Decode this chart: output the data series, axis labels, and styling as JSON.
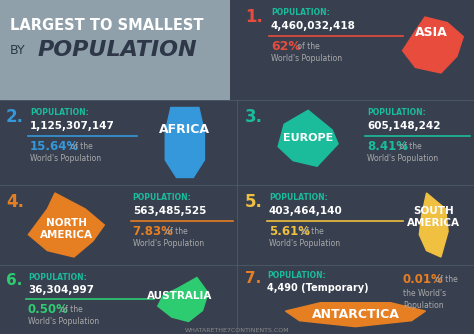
{
  "bg_color": "#384050",
  "title_bg": "#8fa0aa",
  "title_line1": "LARGEST TO SMALLEST",
  "title_by": "BY",
  "title_pop": "POPULATION",
  "footer": "WHATARETHE7CONTINENTS.COM",
  "pop_label_color": "#1abc9c",
  "white": "#ffffff",
  "gray_text": "#aaaaaa",
  "rank_color_1": "#e74c3c",
  "rank_color_2": "#3498db",
  "rank_color_3": "#1abc9c",
  "rank_color_4": "#e67e22",
  "rank_color_5": "#f0c040",
  "rank_color_6": "#2ecc71",
  "rank_color_7": "#e67e22",
  "continents": [
    {
      "rank": "1.",
      "name": "ASIA",
      "pop": "4,460,032,418",
      "pct": "62%",
      "color": "#e74c3c",
      "layout": "right",
      "row": 0,
      "text_side": "left",
      "shape_side": "right"
    },
    {
      "rank": "2.",
      "name": "AFRICA",
      "pop": "1,125,307,147",
      "pct": "15.64%",
      "color": "#3498db",
      "layout": "left",
      "row": 1,
      "text_side": "right",
      "shape_side": "right"
    },
    {
      "rank": "3.",
      "name": "EUROPE",
      "pop": "605,148,242",
      "pct": "8.41%",
      "color": "#1abc9c",
      "layout": "right",
      "row": 1,
      "text_side": "right",
      "shape_side": "left"
    },
    {
      "rank": "4.",
      "name": "NORTH\nAMERICA",
      "pop": "563,485,525",
      "pct": "7.83%",
      "color": "#e67e22",
      "layout": "left",
      "row": 2,
      "text_side": "right",
      "shape_side": "left"
    },
    {
      "rank": "5.",
      "name": "SOUTH\nAMERICA",
      "pop": "403,464,140",
      "pct": "5.61%",
      "color": "#f0c040",
      "layout": "right",
      "row": 2,
      "text_side": "left",
      "shape_side": "right"
    },
    {
      "rank": "6.",
      "name": "AUSTRALIA",
      "pop": "36,304,997",
      "pct": "0.50%",
      "color": "#2ecc71",
      "layout": "left",
      "row": 3,
      "text_side": "right",
      "shape_side": "right"
    },
    {
      "rank": "7.",
      "name": "ANTARCTICA",
      "pop": "4,490 (Temporary)",
      "pct": "0.01%",
      "color": "#e67e22",
      "layout": "right",
      "row": 3,
      "text_side": "left",
      "shape_side": "bottom"
    }
  ]
}
